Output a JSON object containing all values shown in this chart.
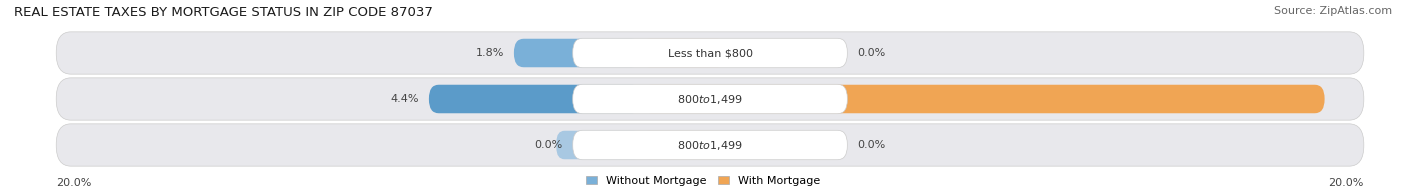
{
  "title": "REAL ESTATE TAXES BY MORTGAGE STATUS IN ZIP CODE 87037",
  "source": "Source: ZipAtlas.com",
  "bars": [
    {
      "label": "Less than $800",
      "without_mortgage_pct": 1.8,
      "with_mortgage_pct": 0.0,
      "without_mortgage_color": "#7ab0d8",
      "with_mortgage_color": "#f0b87c"
    },
    {
      "label": "$800 to $1,499",
      "without_mortgage_pct": 4.4,
      "with_mortgage_pct": 18.8,
      "without_mortgage_color": "#5b9bc9",
      "with_mortgage_color": "#f0a554"
    },
    {
      "label": "$800 to $1,499",
      "without_mortgage_pct": 0.0,
      "with_mortgage_pct": 0.0,
      "without_mortgage_color": "#a8c8e2",
      "with_mortgage_color": "#f5cda0"
    }
  ],
  "x_max": 20.0,
  "axis_label_left": "20.0%",
  "axis_label_right": "20.0%",
  "legend_without": "Without Mortgage",
  "legend_with": "With Mortgage",
  "legend_without_color": "#7ab0d8",
  "legend_with_color": "#f0a554",
  "bg_color": "#ffffff",
  "bar_row_bg": "#e8e8ec",
  "title_fontsize": 9.5,
  "source_fontsize": 8,
  "pct_fontsize": 8,
  "label_fontsize": 8,
  "tick_fontsize": 8
}
